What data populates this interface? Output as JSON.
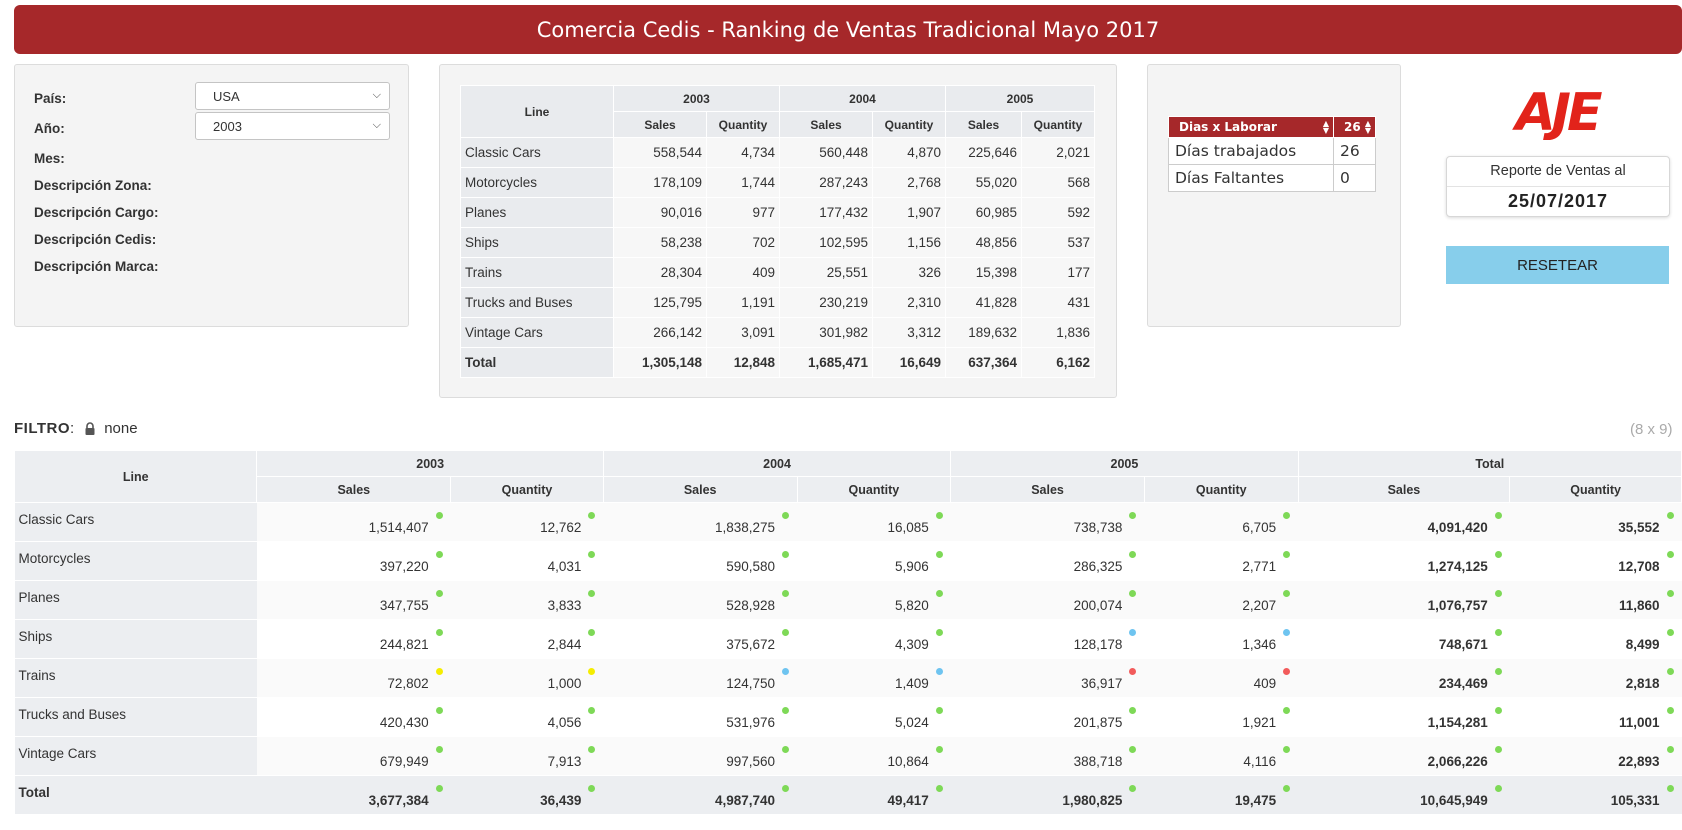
{
  "title": "Comercia Cedis - Ranking de Ventas Tradicional Mayo 2017",
  "filters": {
    "pais_label": "País:",
    "pais_value": "USA",
    "anio_label": "Año:",
    "anio_value": "2003",
    "mes_label": "Mes:",
    "zona_label": "Descripción Zona:",
    "cargo_label": "Descripción Cargo:",
    "cedis_label": "Descripción Cedis:",
    "marca_label": "Descripción Marca:"
  },
  "mini_table": {
    "line_header": "Line",
    "years": [
      "2003",
      "2004",
      "2005"
    ],
    "sub_headers": [
      "Sales",
      "Quantity"
    ],
    "rows": [
      {
        "label": "Classic Cars",
        "values": [
          "558,544",
          "4,734",
          "560,448",
          "4,870",
          "225,646",
          "2,021"
        ]
      },
      {
        "label": "Motorcycles",
        "values": [
          "178,109",
          "1,744",
          "287,243",
          "2,768",
          "55,020",
          "568"
        ]
      },
      {
        "label": "Planes",
        "values": [
          "90,016",
          "977",
          "177,432",
          "1,907",
          "60,985",
          "592"
        ]
      },
      {
        "label": "Ships",
        "values": [
          "58,238",
          "702",
          "102,595",
          "1,156",
          "48,856",
          "537"
        ]
      },
      {
        "label": "Trains",
        "values": [
          "28,304",
          "409",
          "25,551",
          "326",
          "15,398",
          "177"
        ]
      },
      {
        "label": "Trucks and Buses",
        "values": [
          "125,795",
          "1,191",
          "230,219",
          "2,310",
          "41,828",
          "431"
        ]
      },
      {
        "label": "Vintage Cars",
        "values": [
          "266,142",
          "3,091",
          "301,982",
          "3,312",
          "189,632",
          "1,836"
        ]
      }
    ],
    "total": {
      "label": "Total",
      "values": [
        "1,305,148",
        "12,848",
        "1,685,471",
        "16,649",
        "637,364",
        "6,162"
      ]
    }
  },
  "days": {
    "header_label": "Dias x Laborar",
    "header_value": "26",
    "rows": [
      {
        "label": "Días trabajados",
        "value": "26"
      },
      {
        "label": "Días Faltantes",
        "value": "0"
      }
    ]
  },
  "logo_text": "AJE",
  "report": {
    "label": "Reporte de Ventas al",
    "date": "25/07/2017"
  },
  "reset_label": "RESETEAR",
  "filtro": {
    "label": "FILTRO",
    "value": "none",
    "dims": "(8 x 9)"
  },
  "colors": {
    "brand_red": "#a6282a",
    "button_blue": "#87ceeb",
    "dot_green": "#7ed957",
    "dot_blue": "#6ec4f0",
    "dot_yellow": "#f5ed00",
    "dot_red": "#f25b5b"
  },
  "main_table": {
    "line_header": "Line",
    "groups": [
      "2003",
      "2004",
      "2005",
      "Total"
    ],
    "sub_headers": [
      "Sales",
      "Quantity"
    ],
    "rows": [
      {
        "label": "Classic Cars",
        "values": [
          "1,514,407",
          "12,762",
          "1,838,275",
          "16,085",
          "738,738",
          "6,705",
          "4,091,420",
          "35,552"
        ],
        "dots": [
          "green",
          "green",
          "green",
          "green",
          "green",
          "green",
          "green",
          "green"
        ]
      },
      {
        "label": "Motorcycles",
        "values": [
          "397,220",
          "4,031",
          "590,580",
          "5,906",
          "286,325",
          "2,771",
          "1,274,125",
          "12,708"
        ],
        "dots": [
          "green",
          "green",
          "green",
          "green",
          "green",
          "green",
          "green",
          "green"
        ]
      },
      {
        "label": "Planes",
        "values": [
          "347,755",
          "3,833",
          "528,928",
          "5,820",
          "200,074",
          "2,207",
          "1,076,757",
          "11,860"
        ],
        "dots": [
          "green",
          "green",
          "green",
          "green",
          "green",
          "green",
          "green",
          "green"
        ]
      },
      {
        "label": "Ships",
        "values": [
          "244,821",
          "2,844",
          "375,672",
          "4,309",
          "128,178",
          "1,346",
          "748,671",
          "8,499"
        ],
        "dots": [
          "green",
          "green",
          "green",
          "green",
          "blue",
          "blue",
          "green",
          "green"
        ]
      },
      {
        "label": "Trains",
        "values": [
          "72,802",
          "1,000",
          "124,750",
          "1,409",
          "36,917",
          "409",
          "234,469",
          "2,818"
        ],
        "dots": [
          "yellow",
          "yellow",
          "blue",
          "blue",
          "red",
          "red",
          "green",
          "green"
        ]
      },
      {
        "label": "Trucks and Buses",
        "values": [
          "420,430",
          "4,056",
          "531,976",
          "5,024",
          "201,875",
          "1,921",
          "1,154,281",
          "11,001"
        ],
        "dots": [
          "green",
          "green",
          "green",
          "green",
          "green",
          "green",
          "green",
          "green"
        ]
      },
      {
        "label": "Vintage Cars",
        "values": [
          "679,949",
          "7,913",
          "997,560",
          "10,864",
          "388,718",
          "4,116",
          "2,066,226",
          "22,893"
        ],
        "dots": [
          "green",
          "green",
          "green",
          "green",
          "green",
          "green",
          "green",
          "green"
        ]
      }
    ],
    "total": {
      "label": "Total",
      "values": [
        "3,677,384",
        "36,439",
        "4,987,740",
        "49,417",
        "1,980,825",
        "19,475",
        "10,645,949",
        "105,331"
      ],
      "dots": [
        "green",
        "green",
        "green",
        "green",
        "green",
        "green",
        "green",
        "green"
      ]
    }
  }
}
